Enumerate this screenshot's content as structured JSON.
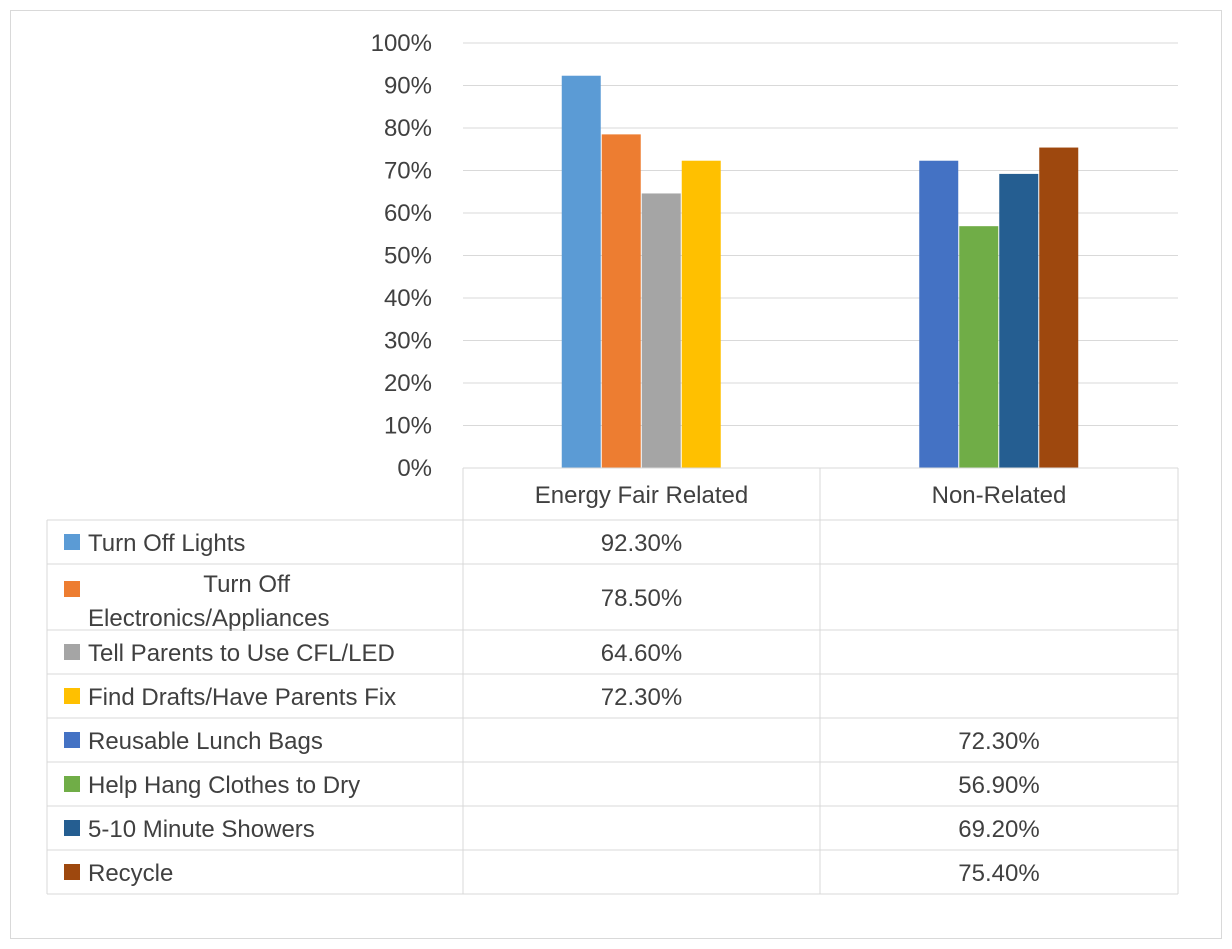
{
  "chart_data": {
    "type": "bar",
    "categories": [
      "Energy Fair Related",
      "Non-Related"
    ],
    "y_ticks": [
      "100%",
      "90%",
      "80%",
      "70%",
      "60%",
      "50%",
      "40%",
      "30%",
      "20%",
      "10%",
      "0%"
    ],
    "ylim": [
      0,
      100
    ],
    "grid": true,
    "legend": "data-table",
    "series": [
      {
        "name": "Turn Off Lights",
        "color": "#5b9bd5",
        "values": [
          92.3,
          null
        ],
        "labels": [
          "92.30%",
          ""
        ]
      },
      {
        "name": "Turn Off Electronics/Appliances",
        "color": "#ed7d31",
        "values": [
          78.5,
          null
        ],
        "labels": [
          "78.50%",
          ""
        ]
      },
      {
        "name": "Tell Parents to Use CFL/LED",
        "color": "#a5a5a5",
        "values": [
          64.6,
          null
        ],
        "labels": [
          "64.60%",
          ""
        ]
      },
      {
        "name": "Find Drafts/Have Parents Fix",
        "color": "#ffc000",
        "values": [
          72.3,
          null
        ],
        "labels": [
          "72.30%",
          ""
        ]
      },
      {
        "name": "Reusable Lunch Bags",
        "color": "#4472c4",
        "values": [
          null,
          72.3
        ],
        "labels": [
          "",
          "72.30%"
        ]
      },
      {
        "name": "Help Hang Clothes to Dry",
        "color": "#70ad47",
        "values": [
          null,
          56.9
        ],
        "labels": [
          "",
          "56.90%"
        ]
      },
      {
        "name": "5-10 Minute Showers",
        "color": "#255e91",
        "values": [
          null,
          69.2
        ],
        "labels": [
          "",
          "69.20%"
        ]
      },
      {
        "name": "Recycle",
        "color": "#9e480e",
        "values": [
          null,
          75.4
        ],
        "labels": [
          "",
          "75.40%"
        ]
      }
    ]
  }
}
